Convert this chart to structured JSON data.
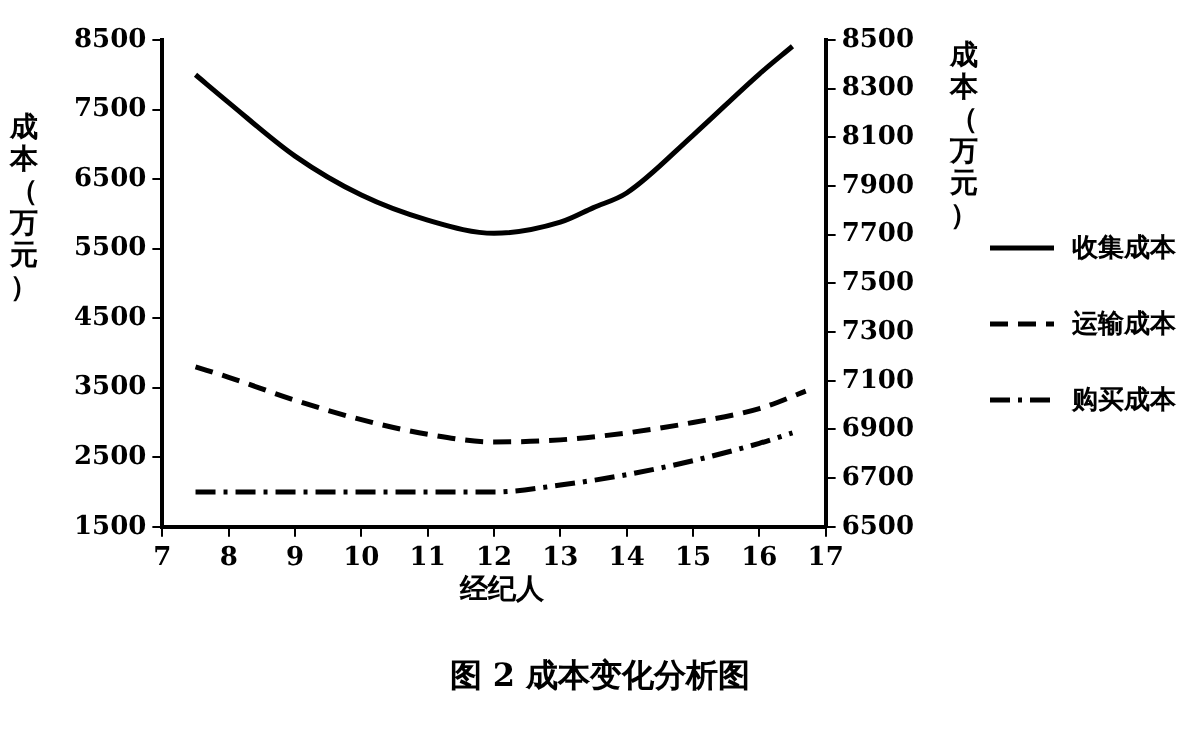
{
  "chart_data": {
    "type": "line",
    "title": "图 2  成本变化分析图",
    "xlabel": "经纪人",
    "ylabel": "成本（万元）",
    "y2label": "成本（万元）",
    "xlim": [
      7,
      17
    ],
    "xticks": [
      7,
      8,
      9,
      10,
      11,
      12,
      13,
      14,
      15,
      16,
      17
    ],
    "ylim": [
      1500,
      8500
    ],
    "yticks": [
      1500,
      2500,
      3500,
      4500,
      5500,
      6500,
      7500,
      8500
    ],
    "y2lim": [
      6500,
      8500
    ],
    "y2ticks": [
      6500,
      6700,
      6900,
      7100,
      7300,
      7500,
      7700,
      7900,
      8100,
      8300,
      8500
    ],
    "grid": false,
    "legend": "right",
    "marker": "none",
    "series": [
      {
        "name": "收集成本",
        "color": "#000000",
        "line_style": "solid",
        "x": [
          7.5,
          8,
          9,
          10,
          11,
          12,
          13,
          13.5,
          14,
          15,
          16,
          16.5
        ],
        "values": [
          8000,
          7600,
          6830,
          6270,
          5910,
          5720,
          5880,
          6090,
          6300,
          7130,
          8010,
          8410
        ]
      },
      {
        "name": "运输成本",
        "color": "#000000",
        "line_style": "dashed",
        "x": [
          7.5,
          8,
          9,
          10,
          11,
          12,
          13,
          14,
          15,
          16,
          16.7
        ],
        "values": [
          3800,
          3650,
          3320,
          3040,
          2830,
          2720,
          2750,
          2850,
          3000,
          3200,
          3450
        ]
      },
      {
        "name": "购买成本",
        "color": "#000000",
        "line_style": "dashdot",
        "x": [
          7.5,
          8,
          9,
          10,
          11,
          12,
          13,
          14,
          15,
          16,
          16.5
        ],
        "values": [
          2000,
          2000,
          2000,
          2000,
          2000,
          2000,
          2100,
          2250,
          2450,
          2700,
          2850
        ]
      }
    ]
  }
}
